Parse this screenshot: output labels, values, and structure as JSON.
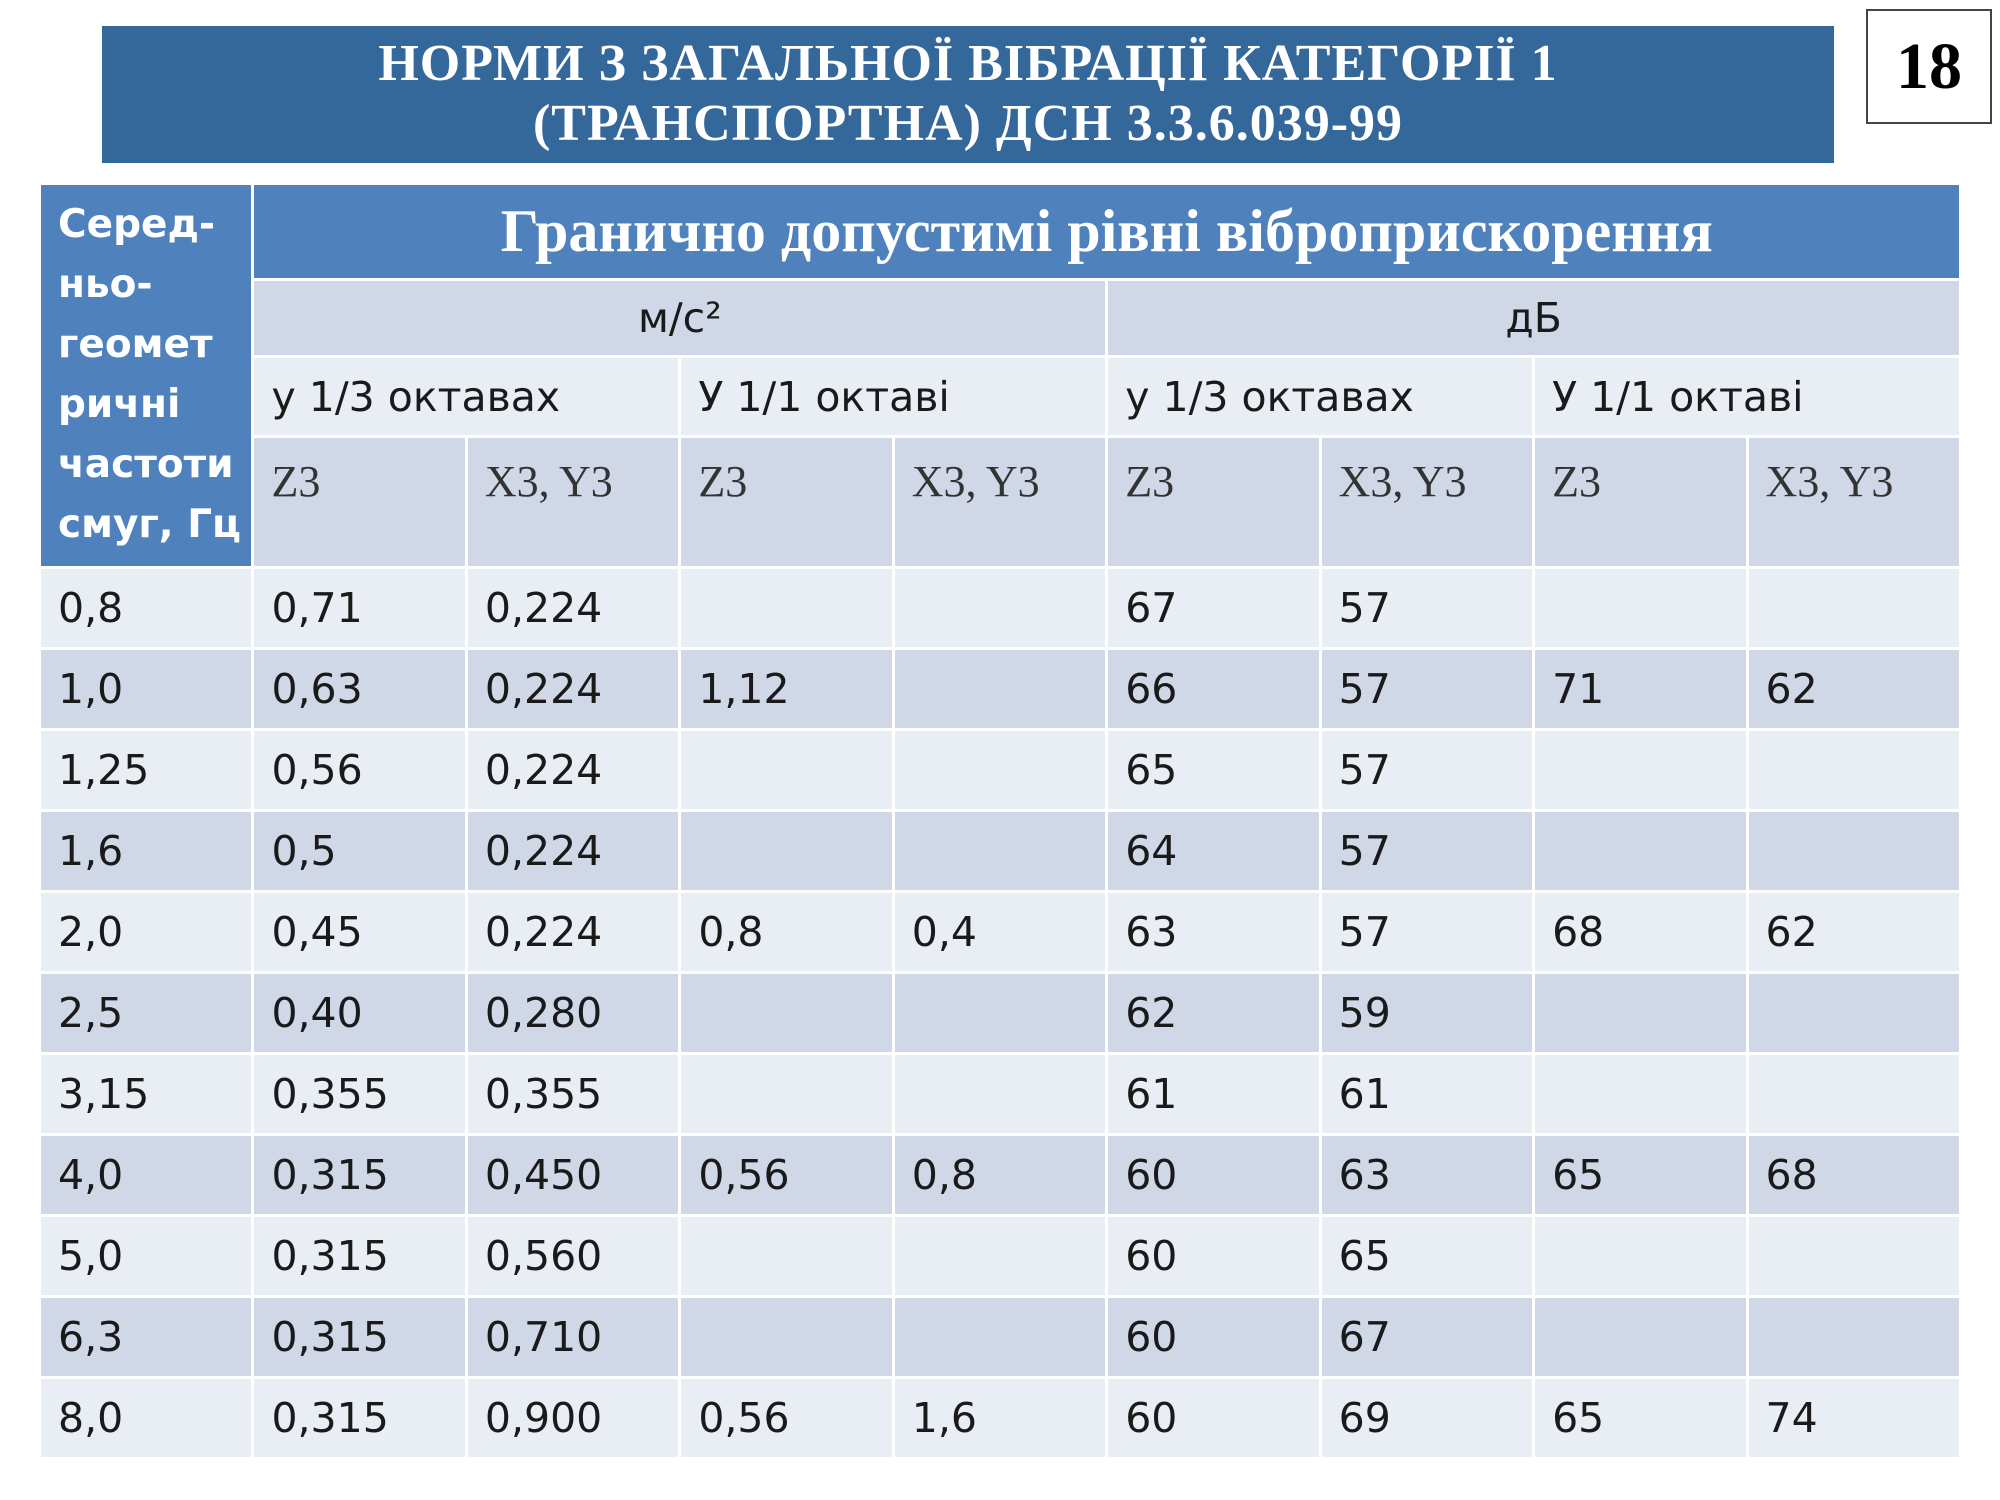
{
  "header": {
    "title_lines": [
      "НОРМИ З ЗАГАЛЬНОЇ ВІБРАЦІЇ КАТЕГОРІЇ 1",
      "(ТРАНСПОРТНА)  ДСН 3.3.6.039-99"
    ],
    "page_number": "18"
  },
  "table": {
    "row_header_lines": [
      "Серед-",
      "ньо-",
      "геомет",
      "ричні",
      "частоти",
      "смуг, Гц"
    ],
    "group_title": "Гранично допустимі рівні віброприскорення",
    "units": [
      "м/с²",
      "дБ"
    ],
    "subgroups": [
      "у 1/3 октавах",
      "У 1/1 октаві",
      "у 1/3 октавах",
      "У 1/1 октаві"
    ],
    "axes": [
      "Z3",
      "X3, Y3",
      "Z3",
      "X3, Y3",
      "Z3",
      "X3, Y3",
      "Z3",
      "X3, Y3"
    ],
    "rows": [
      [
        "0,8",
        "0,71",
        "0,224",
        null,
        null,
        "67",
        "57",
        null,
        null
      ],
      [
        "1,0",
        "0,63",
        "0,224",
        "1,12",
        null,
        "66",
        "57",
        "71",
        "62"
      ],
      [
        "1,25",
        "0,56",
        "0,224",
        null,
        null,
        "65",
        "57",
        null,
        null
      ],
      [
        "1,6",
        "0,5",
        "0,224",
        null,
        null,
        "64",
        "57",
        null,
        null
      ],
      [
        "2,0",
        "0,45",
        "0,224",
        "0,8",
        "0,4",
        "63",
        "57",
        "68",
        "62"
      ],
      [
        "2,5",
        "0,40",
        "0,280",
        null,
        null,
        "62",
        "59",
        null,
        null
      ],
      [
        "3,15",
        "0,355",
        "0,355",
        null,
        null,
        "61",
        "61",
        null,
        null
      ],
      [
        "4,0",
        "0,315",
        "0,450",
        "0,56",
        "0,8",
        "60",
        "63",
        "65",
        "68"
      ],
      [
        "5,0",
        "0,315",
        "0,560",
        null,
        null,
        "60",
        "65",
        null,
        null
      ],
      [
        "6,3",
        "0,315",
        "0,710",
        null,
        null,
        "60",
        "67",
        null,
        null
      ],
      [
        "8,0",
        "0,315",
        "0,900",
        "0,56",
        "1,6",
        "60",
        "69",
        "65",
        "74"
      ]
    ]
  }
}
